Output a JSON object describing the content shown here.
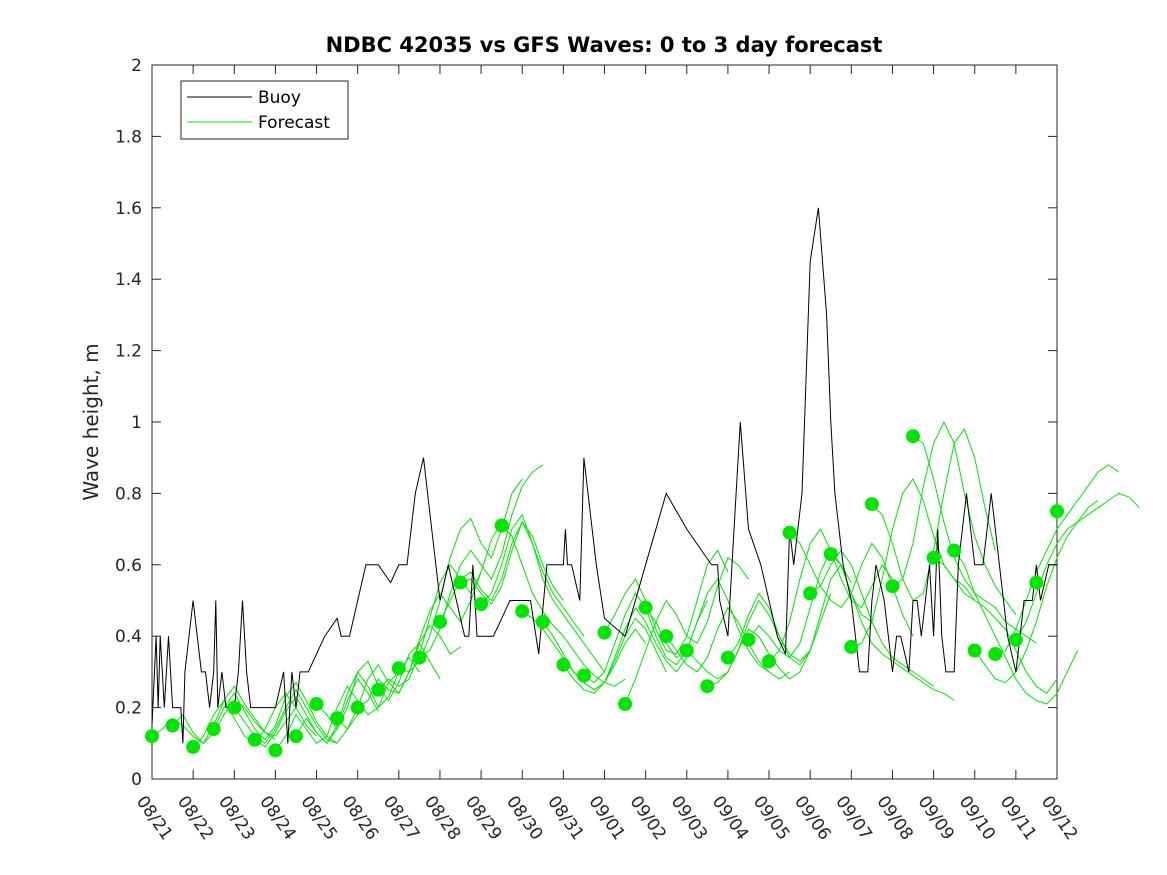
{
  "chart_data": {
    "type": "line",
    "title": "NDBC 42035 vs GFS Waves: 0 to 3 day forecast",
    "xlabel": "",
    "ylabel": "Wave height, m",
    "xlim": [
      0,
      22
    ],
    "ylim": [
      0,
      2
    ],
    "x_tick_labels": [
      "08/21",
      "08/22",
      "08/23",
      "08/24",
      "08/25",
      "08/26",
      "08/27",
      "08/28",
      "08/29",
      "08/30",
      "08/31",
      "09/01",
      "09/02",
      "09/03",
      "09/04",
      "09/05",
      "09/06",
      "09/07",
      "09/08",
      "09/09",
      "09/10",
      "09/11",
      "09/12"
    ],
    "y_ticks": [
      0,
      0.2,
      0.4,
      0.6,
      0.8,
      1,
      1.2,
      1.4,
      1.6,
      1.8,
      2
    ],
    "y_tick_labels": [
      "0",
      "0.2",
      "0.4",
      "0.6",
      "0.8",
      "1",
      "1.2",
      "1.4",
      "1.6",
      "1.8",
      "2"
    ],
    "grid": false,
    "legend": {
      "placement": "top-left",
      "entries": [
        "Buoy",
        "Forecast"
      ]
    },
    "colors": {
      "buoy": "#000000",
      "forecast": "#00e600",
      "axis": "#262626"
    },
    "series": [
      {
        "name": "Buoy",
        "x": [
          0,
          0.1,
          0.15,
          0.2,
          0.25,
          0.3,
          0.35,
          0.4,
          0.5,
          0.6,
          0.7,
          0.75,
          0.8,
          0.9,
          1.0,
          1.2,
          1.3,
          1.4,
          1.5,
          1.55,
          1.6,
          1.7,
          1.8,
          2.0,
          2.1,
          2.2,
          2.3,
          2.4,
          2.5,
          2.6,
          2.8,
          3.0,
          3.2,
          3.3,
          3.4,
          3.5,
          3.6,
          3.8,
          4.0,
          4.2,
          4.5,
          4.6,
          4.7,
          4.8,
          5.0,
          5.2,
          5.5,
          5.8,
          6.0,
          6.2,
          6.4,
          6.6,
          6.8,
          7.0,
          7.2,
          7.4,
          7.6,
          7.7,
          7.8,
          7.9,
          8.0,
          8.3,
          8.5,
          8.7,
          8.8,
          8.9,
          9.0,
          9.2,
          9.4,
          9.6,
          9.8,
          10.0,
          10.05,
          10.1,
          10.2,
          10.4,
          10.5,
          10.6,
          10.8,
          11.0,
          11.5,
          12.0,
          12.5,
          13.0,
          13.6,
          13.75,
          13.8,
          14.0,
          14.2,
          14.3,
          14.5,
          14.8,
          15.0,
          15.2,
          15.4,
          15.5,
          15.6,
          15.8,
          16.0,
          16.2,
          16.4,
          16.5,
          16.6,
          16.8,
          17.0,
          17.2,
          17.4,
          17.5,
          17.6,
          17.8,
          18.0,
          18.1,
          18.2,
          18.3,
          18.4,
          18.5,
          18.6,
          18.7,
          18.8,
          18.9,
          19.0,
          19.1,
          19.2,
          19.3,
          19.4,
          19.5,
          19.6,
          19.8,
          20.0,
          20.2,
          20.4,
          20.6,
          20.8,
          21.0,
          21.2,
          21.4,
          21.5,
          21.6,
          21.8,
          22.0
        ],
        "values": [
          0.15,
          0.4,
          0.2,
          0.4,
          0.3,
          0.2,
          0.3,
          0.4,
          0.2,
          0.2,
          0.2,
          0.1,
          0.3,
          0.4,
          0.5,
          0.3,
          0.3,
          0.2,
          0.3,
          0.5,
          0.2,
          0.3,
          0.2,
          0.2,
          0.3,
          0.5,
          0.3,
          0.2,
          0.2,
          0.2,
          0.2,
          0.2,
          0.3,
          0.1,
          0.3,
          0.2,
          0.3,
          0.3,
          0.35,
          0.4,
          0.45,
          0.4,
          0.4,
          0.4,
          0.5,
          0.6,
          0.6,
          0.55,
          0.6,
          0.6,
          0.8,
          0.9,
          0.7,
          0.5,
          0.6,
          0.5,
          0.4,
          0.4,
          0.6,
          0.4,
          0.4,
          0.4,
          0.45,
          0.5,
          0.5,
          0.5,
          0.5,
          0.5,
          0.35,
          0.6,
          0.6,
          0.6,
          0.7,
          0.6,
          0.6,
          0.5,
          0.9,
          0.8,
          0.6,
          0.45,
          0.4,
          0.6,
          0.8,
          0.7,
          0.6,
          0.6,
          0.5,
          0.4,
          0.8,
          1.0,
          0.7,
          0.6,
          0.5,
          0.4,
          0.35,
          0.7,
          0.6,
          0.8,
          1.45,
          1.6,
          1.3,
          1.0,
          0.8,
          0.6,
          0.5,
          0.3,
          0.3,
          0.5,
          0.6,
          0.5,
          0.3,
          0.4,
          0.4,
          0.35,
          0.3,
          0.5,
          0.5,
          0.4,
          0.5,
          0.6,
          0.4,
          0.7,
          0.4,
          0.3,
          0.3,
          0.3,
          0.6,
          0.8,
          0.6,
          0.6,
          0.8,
          0.6,
          0.4,
          0.3,
          0.5,
          0.5,
          0.6,
          0.5,
          0.6,
          0.6
        ]
      },
      {
        "name": "Forecast",
        "x": [
          0,
          0.5,
          1.0,
          1.5,
          2.0,
          2.5,
          3.0,
          3.5,
          4.0,
          4.5,
          5.0,
          5.5,
          6.0,
          6.5,
          7.0,
          7.5,
          8.0,
          8.5,
          9.0,
          9.5,
          10.0,
          10.5,
          11.0,
          11.5,
          12.0,
          12.5,
          13.0,
          13.5,
          14.0,
          14.5,
          15.0,
          15.5,
          16.0,
          16.5,
          17.0,
          17.5,
          18.0,
          18.5,
          19.0,
          19.5,
          20.0,
          20.5,
          21.0,
          21.5,
          22.0
        ],
        "values": [
          0.12,
          0.15,
          0.09,
          0.14,
          0.2,
          0.11,
          0.08,
          0.12,
          0.21,
          0.17,
          0.2,
          0.25,
          0.31,
          0.34,
          0.44,
          0.55,
          0.49,
          0.71,
          0.47,
          0.44,
          0.32,
          0.29,
          0.41,
          0.21,
          0.48,
          0.4,
          0.36,
          0.26,
          0.34,
          0.39,
          0.33,
          0.69,
          0.52,
          0.63,
          0.37,
          0.77,
          0.54,
          0.96,
          0.62,
          0.64,
          0.36,
          0.35,
          0.39,
          0.55,
          0.75
        ]
      }
    ],
    "forecast_runs": [
      {
        "start": 0,
        "values": [
          0.12,
          0.14,
          0.17,
          0.15,
          0.12,
          0.1,
          0.13,
          0.18,
          0.22,
          0.2,
          0.16,
          0.13,
          0.11
        ]
      },
      {
        "start": 0.5,
        "values": [
          0.15,
          0.18,
          0.13,
          0.1,
          0.15,
          0.22,
          0.26,
          0.21,
          0.17,
          0.13,
          0.12,
          0.16,
          0.2
        ]
      },
      {
        "start": 1.0,
        "values": [
          0.09,
          0.12,
          0.18,
          0.22,
          0.17,
          0.12,
          0.1,
          0.14,
          0.2,
          0.24,
          0.2,
          0.15,
          0.12
        ]
      },
      {
        "start": 1.5,
        "values": [
          0.14,
          0.2,
          0.24,
          0.19,
          0.14,
          0.11,
          0.15,
          0.23,
          0.27,
          0.22,
          0.16,
          0.12,
          0.1
        ]
      },
      {
        "start": 2.0,
        "values": [
          0.2,
          0.16,
          0.12,
          0.1,
          0.14,
          0.2,
          0.25,
          0.2,
          0.15,
          0.11,
          0.1,
          0.14,
          0.18
        ]
      },
      {
        "start": 2.5,
        "values": [
          0.11,
          0.09,
          0.13,
          0.19,
          0.23,
          0.18,
          0.13,
          0.1,
          0.14,
          0.22,
          0.28,
          0.24,
          0.19
        ]
      },
      {
        "start": 3.0,
        "values": [
          0.08,
          0.12,
          0.18,
          0.14,
          0.1,
          0.12,
          0.2,
          0.26,
          0.22,
          0.18,
          0.2,
          0.27,
          0.3
        ]
      },
      {
        "start": 3.5,
        "values": [
          0.12,
          0.17,
          0.13,
          0.1,
          0.15,
          0.24,
          0.3,
          0.26,
          0.2,
          0.23,
          0.3,
          0.34,
          0.3
        ]
      },
      {
        "start": 4.0,
        "values": [
          0.21,
          0.18,
          0.14,
          0.2,
          0.3,
          0.33,
          0.26,
          0.22,
          0.27,
          0.35,
          0.38,
          0.33,
          0.28
        ]
      },
      {
        "start": 4.5,
        "values": [
          0.17,
          0.14,
          0.2,
          0.28,
          0.32,
          0.27,
          0.24,
          0.3,
          0.38,
          0.43,
          0.4,
          0.35,
          0.37
        ]
      },
      {
        "start": 5.0,
        "values": [
          0.2,
          0.22,
          0.28,
          0.25,
          0.24,
          0.3,
          0.39,
          0.47,
          0.52,
          0.48,
          0.44,
          0.5,
          0.58
        ]
      },
      {
        "start": 5.5,
        "values": [
          0.25,
          0.28,
          0.26,
          0.28,
          0.35,
          0.45,
          0.55,
          0.6,
          0.56,
          0.52,
          0.58,
          0.67,
          0.72
        ]
      },
      {
        "start": 6.0,
        "values": [
          0.31,
          0.3,
          0.33,
          0.4,
          0.5,
          0.62,
          0.7,
          0.73,
          0.66,
          0.62,
          0.7,
          0.8,
          0.84
        ]
      },
      {
        "start": 6.5,
        "values": [
          0.34,
          0.36,
          0.42,
          0.52,
          0.6,
          0.64,
          0.6,
          0.56,
          0.63,
          0.74,
          0.82,
          0.86,
          0.88
        ]
      },
      {
        "start": 7.0,
        "values": [
          0.44,
          0.5,
          0.56,
          0.58,
          0.53,
          0.5,
          0.56,
          0.66,
          0.72,
          0.68,
          0.6,
          0.54,
          0.5
        ]
      },
      {
        "start": 7.5,
        "values": [
          0.55,
          0.56,
          0.52,
          0.49,
          0.54,
          0.64,
          0.72,
          0.66,
          0.58,
          0.52,
          0.48,
          0.44,
          0.4
        ]
      },
      {
        "start": 8.0,
        "values": [
          0.49,
          0.52,
          0.6,
          0.7,
          0.74,
          0.66,
          0.56,
          0.5,
          0.46,
          0.42,
          0.38,
          0.34,
          0.3
        ]
      },
      {
        "start": 8.5,
        "values": [
          0.71,
          0.68,
          0.6,
          0.52,
          0.47,
          0.43,
          0.4,
          0.36,
          0.32,
          0.29,
          0.27,
          0.26,
          0.28
        ]
      },
      {
        "start": 9.0,
        "values": [
          0.47,
          0.45,
          0.42,
          0.38,
          0.34,
          0.3,
          0.27,
          0.25,
          0.27,
          0.32,
          0.38,
          0.42,
          0.38
        ]
      },
      {
        "start": 9.5,
        "values": [
          0.44,
          0.4,
          0.35,
          0.3,
          0.27,
          0.25,
          0.27,
          0.33,
          0.4,
          0.45,
          0.42,
          0.36,
          0.3
        ]
      },
      {
        "start": 10.0,
        "values": [
          0.32,
          0.28,
          0.25,
          0.24,
          0.27,
          0.34,
          0.42,
          0.48,
          0.44,
          0.38,
          0.33,
          0.3,
          0.34
        ]
      },
      {
        "start": 10.5,
        "values": [
          0.29,
          0.27,
          0.3,
          0.38,
          0.46,
          0.52,
          0.48,
          0.4,
          0.34,
          0.32,
          0.36,
          0.44,
          0.5
        ]
      },
      {
        "start": 11.0,
        "values": [
          0.41,
          0.46,
          0.52,
          0.56,
          0.5,
          0.42,
          0.36,
          0.35,
          0.4,
          0.5,
          0.6,
          0.64,
          0.58
        ]
      },
      {
        "start": 11.5,
        "values": [
          0.21,
          0.28,
          0.36,
          0.44,
          0.5,
          0.46,
          0.4,
          0.38,
          0.44,
          0.54,
          0.62,
          0.6,
          0.56
        ]
      },
      {
        "start": 12.0,
        "values": [
          0.48,
          0.44,
          0.38,
          0.34,
          0.36,
          0.44,
          0.52,
          0.56,
          0.5,
          0.42,
          0.36,
          0.32,
          0.3
        ]
      },
      {
        "start": 12.5,
        "values": [
          0.4,
          0.36,
          0.32,
          0.3,
          0.34,
          0.42,
          0.48,
          0.44,
          0.38,
          0.33,
          0.3,
          0.28,
          0.3
        ]
      },
      {
        "start": 13.0,
        "values": [
          0.36,
          0.33,
          0.3,
          0.28,
          0.3,
          0.36,
          0.42,
          0.4,
          0.35,
          0.31,
          0.28,
          0.3,
          0.36
        ]
      },
      {
        "start": 13.5,
        "values": [
          0.26,
          0.27,
          0.3,
          0.36,
          0.44,
          0.5,
          0.46,
          0.4,
          0.35,
          0.33,
          0.36,
          0.44,
          0.52
        ]
      },
      {
        "start": 14.0,
        "values": [
          0.34,
          0.38,
          0.46,
          0.52,
          0.48,
          0.4,
          0.34,
          0.32,
          0.36,
          0.46,
          0.56,
          0.6,
          0.55
        ]
      },
      {
        "start": 14.5,
        "values": [
          0.39,
          0.43,
          0.4,
          0.36,
          0.34,
          0.38,
          0.48,
          0.58,
          0.64,
          0.6,
          0.52,
          0.46,
          0.44
        ]
      },
      {
        "start": 15.0,
        "values": [
          0.33,
          0.36,
          0.44,
          0.56,
          0.66,
          0.7,
          0.64,
          0.56,
          0.5,
          0.48,
          0.54,
          0.6,
          0.56
        ]
      },
      {
        "start": 15.5,
        "values": [
          0.69,
          0.66,
          0.6,
          0.54,
          0.5,
          0.48,
          0.52,
          0.6,
          0.66,
          0.62,
          0.54,
          0.46,
          0.4
        ]
      },
      {
        "start": 16.0,
        "values": [
          0.52,
          0.54,
          0.6,
          0.64,
          0.6,
          0.52,
          0.44,
          0.38,
          0.34,
          0.32,
          0.3,
          0.28,
          0.26
        ]
      },
      {
        "start": 16.5,
        "values": [
          0.63,
          0.6,
          0.52,
          0.44,
          0.38,
          0.35,
          0.33,
          0.31,
          0.29,
          0.27,
          0.25,
          0.24,
          0.22
        ]
      },
      {
        "start": 17.0,
        "values": [
          0.37,
          0.38,
          0.44,
          0.56,
          0.7,
          0.8,
          0.84,
          0.78,
          0.68,
          0.6,
          0.56,
          0.54,
          0.5
        ]
      },
      {
        "start": 17.5,
        "values": [
          0.77,
          0.74,
          0.66,
          0.56,
          0.5,
          0.52,
          0.64,
          0.8,
          0.94,
          0.98,
          0.9,
          0.76,
          0.64
        ]
      },
      {
        "start": 18.0,
        "values": [
          0.54,
          0.56,
          0.66,
          0.82,
          0.94,
          1.0,
          0.94,
          0.8,
          0.68,
          0.6,
          0.54,
          0.5,
          0.46
        ]
      },
      {
        "start": 18.5,
        "values": [
          0.96,
          0.94,
          0.84,
          0.72,
          0.62,
          0.56,
          0.52,
          0.5,
          0.48,
          0.44,
          0.42,
          0.4,
          0.38
        ]
      },
      {
        "start": 19.0,
        "values": [
          0.62,
          0.6,
          0.56,
          0.52,
          0.5,
          0.48,
          0.45,
          0.42,
          0.36,
          0.3,
          0.26,
          0.24,
          0.28
        ]
      },
      {
        "start": 19.5,
        "values": [
          0.64,
          0.6,
          0.52,
          0.46,
          0.4,
          0.34,
          0.28,
          0.24,
          0.22,
          0.21,
          0.24,
          0.3,
          0.36
        ]
      },
      {
        "start": 20.0,
        "values": [
          0.36,
          0.32,
          0.28,
          0.27,
          0.3,
          0.36,
          0.44,
          0.54,
          0.62,
          0.68,
          0.72,
          0.76,
          0.78
        ]
      },
      {
        "start": 20.5,
        "values": [
          0.35,
          0.36,
          0.42,
          0.5,
          0.58,
          0.64,
          0.7,
          0.74,
          0.78,
          0.82,
          0.86,
          0.88,
          0.86
        ]
      },
      {
        "start": 21.0,
        "values": [
          0.39,
          0.44,
          0.52,
          0.6,
          0.66,
          0.7,
          0.72,
          0.74,
          0.76,
          0.78,
          0.8,
          0.79,
          0.76
        ]
      }
    ]
  }
}
